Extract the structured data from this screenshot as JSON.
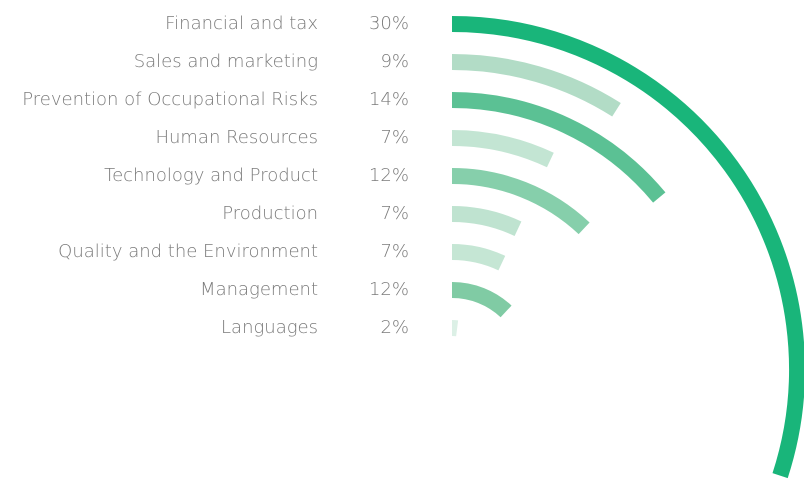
{
  "chart_data": {
    "type": "radial_bar",
    "categories": [
      "Financial and tax",
      "Sales and marketing",
      "Prevention of Occupational Risks",
      "Human Resources",
      "Technology and Product",
      "Production",
      "Quality and the Environment",
      "Management",
      "Languages"
    ],
    "values": [
      30,
      9,
      14,
      7,
      12,
      7,
      7,
      12,
      2
    ],
    "value_labels": [
      "30%",
      "9%",
      "14%",
      "7%",
      "12%",
      "7%",
      "7%",
      "12%",
      "2%"
    ],
    "colors": [
      "#19b57a",
      "#b2dcc6",
      "#5bc194",
      "#c3e5d3",
      "#86cfab",
      "#bfe3d0",
      "#c5e6d4",
      "#80cba4",
      "#dcf0e6"
    ]
  }
}
